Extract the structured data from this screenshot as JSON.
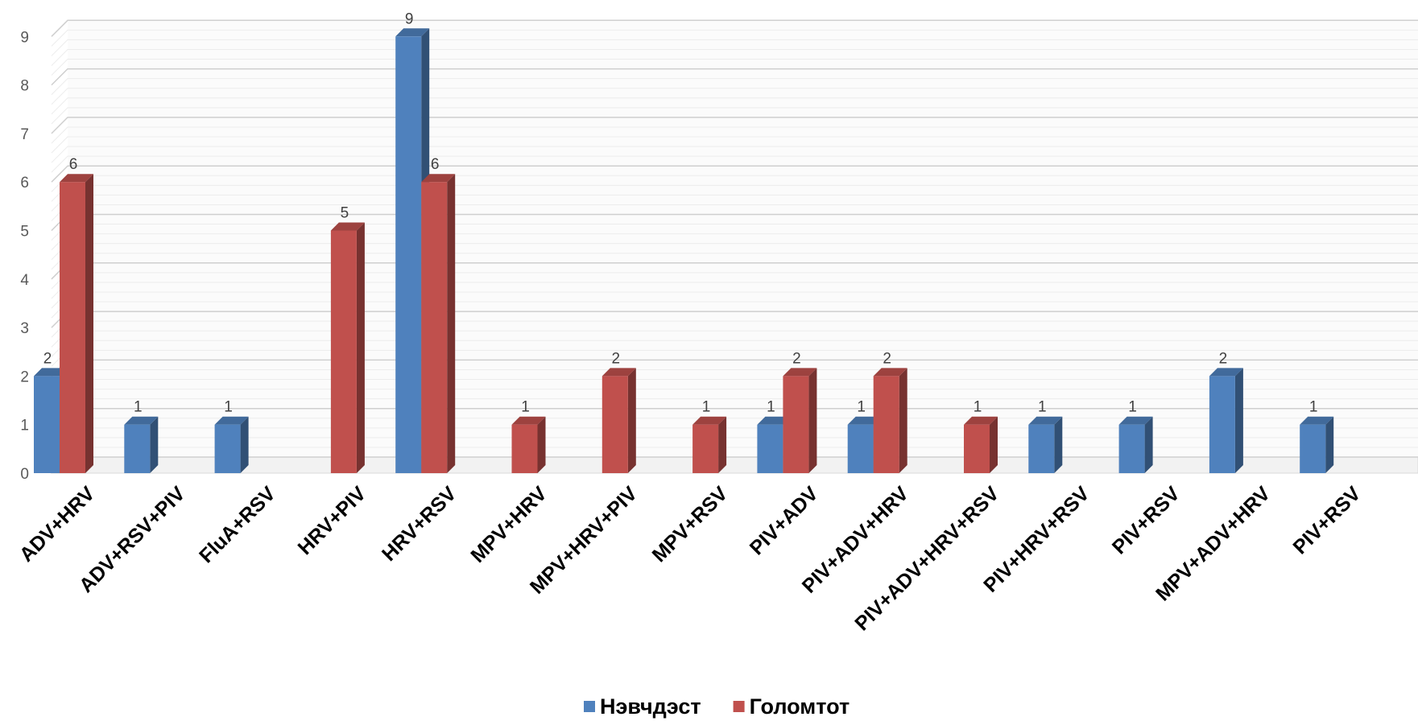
{
  "chart_data": {
    "type": "bar",
    "title": "",
    "xlabel": "",
    "ylabel": "",
    "ylim": [
      0,
      9
    ],
    "yticks": [
      0,
      1,
      2,
      3,
      4,
      5,
      6,
      7,
      8,
      9
    ],
    "grid": true,
    "style": "3d-clustered-column",
    "legend_position": "bottom",
    "categories": [
      "ADV+HRV",
      "ADV+RSV+PIV",
      "FluA+RSV",
      "HRV+PIV",
      "HRV+RSV",
      "MPV+HRV",
      "MPV+HRV+PIV",
      "MPV+RSV",
      "PIV+ADV",
      "PIV+ADV+HRV",
      "PIV+ADV+HRV+RSV",
      "PIV+HRV+RSV",
      "PIV+RSV",
      "MPV+ADV+HRV",
      "PIV+RSV"
    ],
    "series": [
      {
        "name": "Нэвчдэст",
        "color": "#4f81bd",
        "values": [
          2,
          1,
          1,
          null,
          9,
          null,
          null,
          null,
          1,
          1,
          null,
          1,
          1,
          2,
          1
        ]
      },
      {
        "name": "Голомтот",
        "color": "#c0504d",
        "values": [
          6,
          null,
          null,
          5,
          6,
          1,
          2,
          1,
          2,
          2,
          1,
          null,
          null,
          null,
          null
        ]
      }
    ]
  }
}
